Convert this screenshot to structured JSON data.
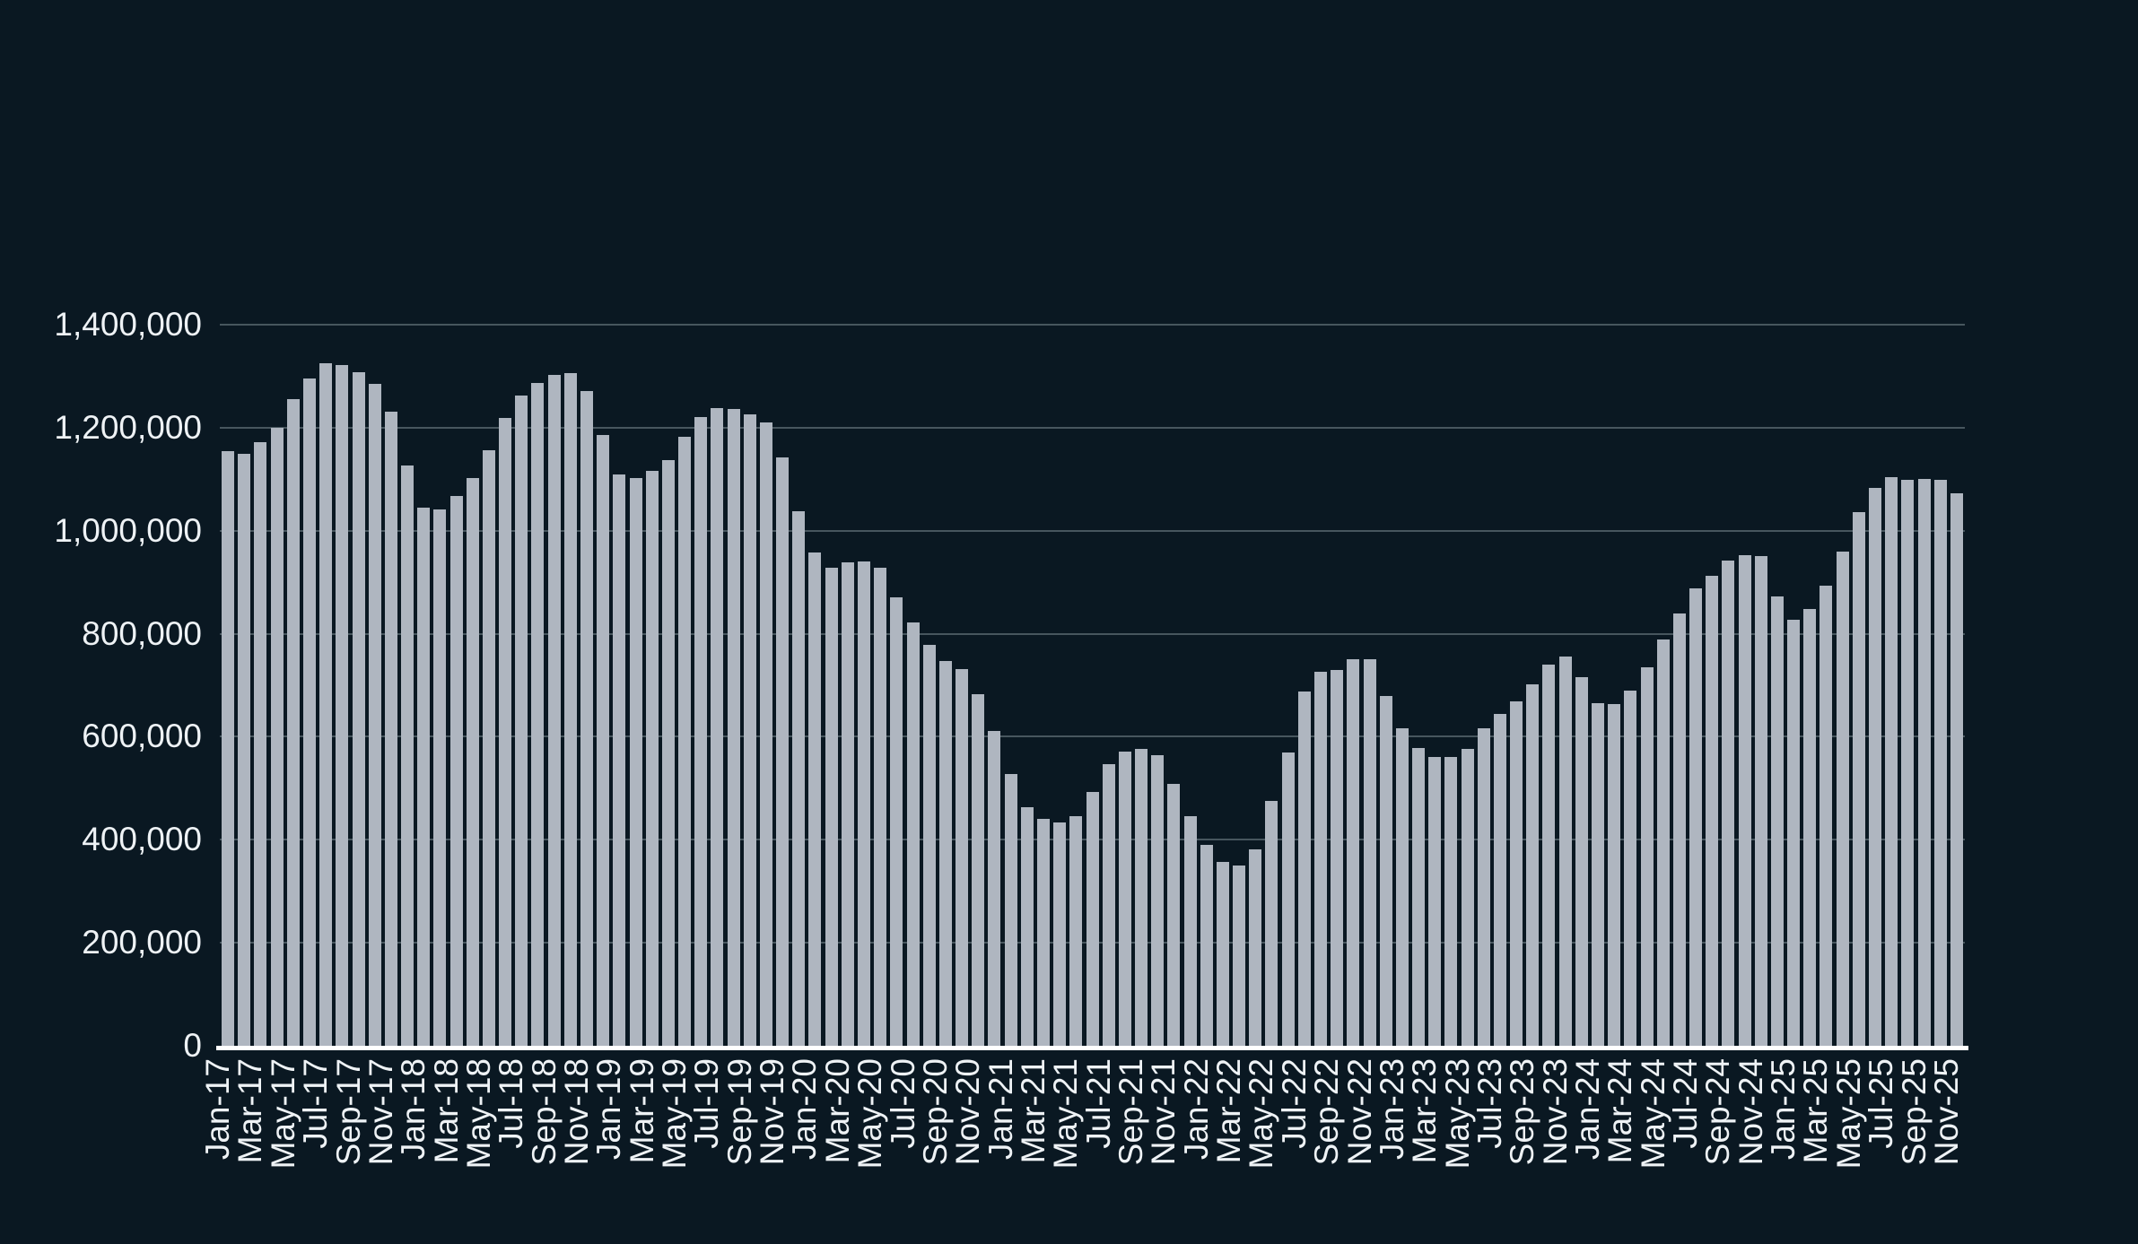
{
  "chart_data": {
    "type": "bar",
    "title": "",
    "xlabel": "",
    "ylabel": "",
    "ylim": [
      0,
      1400000
    ],
    "y_tick_step": 200000,
    "y_tick_labels": [
      "0",
      "200,000",
      "400,000",
      "600,000",
      "800,000",
      "1,000,000",
      "1,200,000",
      "1,400,000"
    ],
    "x_label_every": 2,
    "grid": true,
    "legend": false,
    "colors": {
      "background": "#0a1822",
      "bar": "#afb6c0",
      "gridline": "#47565e",
      "baseline": "#ffffff",
      "text": "#eef2f5"
    },
    "x": [
      "Jan-17",
      "Feb-17",
      "Mar-17",
      "Apr-17",
      "May-17",
      "Jun-17",
      "Jul-17",
      "Aug-17",
      "Sep-17",
      "Oct-17",
      "Nov-17",
      "Dec-17",
      "Jan-18",
      "Feb-18",
      "Mar-18",
      "Apr-18",
      "May-18",
      "Jun-18",
      "Jul-18",
      "Aug-18",
      "Sep-18",
      "Oct-18",
      "Nov-18",
      "Dec-18",
      "Jan-19",
      "Feb-19",
      "Mar-19",
      "Apr-19",
      "May-19",
      "Jun-19",
      "Jul-19",
      "Aug-19",
      "Sep-19",
      "Oct-19",
      "Nov-19",
      "Dec-19",
      "Jan-20",
      "Feb-20",
      "Mar-20",
      "Apr-20",
      "May-20",
      "Jun-20",
      "Jul-20",
      "Aug-20",
      "Sep-20",
      "Oct-20",
      "Nov-20",
      "Dec-20",
      "Jan-21",
      "Feb-21",
      "Mar-21",
      "Apr-21",
      "May-21",
      "Jun-21",
      "Jul-21",
      "Aug-21",
      "Sep-21",
      "Oct-21",
      "Nov-21",
      "Dec-21",
      "Jan-22",
      "Feb-22",
      "Mar-22",
      "Apr-22",
      "May-22",
      "Jun-22",
      "Jul-22",
      "Aug-22",
      "Sep-22",
      "Oct-22",
      "Nov-22",
      "Dec-22",
      "Jan-23",
      "Feb-23",
      "Mar-23",
      "Apr-23",
      "May-23",
      "Jun-23",
      "Jul-23",
      "Aug-23",
      "Sep-23",
      "Oct-23",
      "Nov-23",
      "Dec-23",
      "Jan-24",
      "Feb-24",
      "Mar-24",
      "Apr-24",
      "May-24",
      "Jun-24",
      "Jul-24",
      "Aug-24",
      "Sep-24",
      "Oct-24",
      "Nov-24",
      "Dec-24",
      "Jan-25",
      "Feb-25",
      "Mar-25",
      "Apr-25",
      "May-25",
      "Jun-25",
      "Jul-25",
      "Aug-25",
      "Sep-25",
      "Oct-25",
      "Nov-25"
    ],
    "values": [
      1155000,
      1150000,
      1172000,
      1200000,
      1255000,
      1295000,
      1326000,
      1322000,
      1308000,
      1285000,
      1231000,
      1126000,
      1044000,
      1042000,
      1067000,
      1103000,
      1156000,
      1219000,
      1263000,
      1287000,
      1303000,
      1306000,
      1272000,
      1186000,
      1109000,
      1102000,
      1116000,
      1137000,
      1182000,
      1221000,
      1238000,
      1236000,
      1226000,
      1210000,
      1142000,
      1037000,
      957000,
      929000,
      939000,
      941000,
      929000,
      871000,
      822000,
      778000,
      747000,
      731000,
      682000,
      611000,
      528000,
      463000,
      441000,
      434000,
      445000,
      492000,
      546000,
      572000,
      577000,
      565000,
      509000,
      445000,
      390000,
      357000,
      350000,
      381000,
      476000,
      570000,
      688000,
      726000,
      730000,
      751000,
      750000,
      679000,
      616000,
      578000,
      560000,
      560000,
      577000,
      616000,
      645000,
      668000,
      702000,
      740000,
      756000,
      715000,
      665000,
      663000,
      690000,
      734000,
      788000,
      840000,
      888000,
      912000,
      942000,
      952000,
      950000,
      872000,
      828000,
      848000,
      893000,
      959000,
      1036000,
      1083000,
      1104000,
      1099000,
      1100000,
      1099000,
      1073000
    ]
  }
}
